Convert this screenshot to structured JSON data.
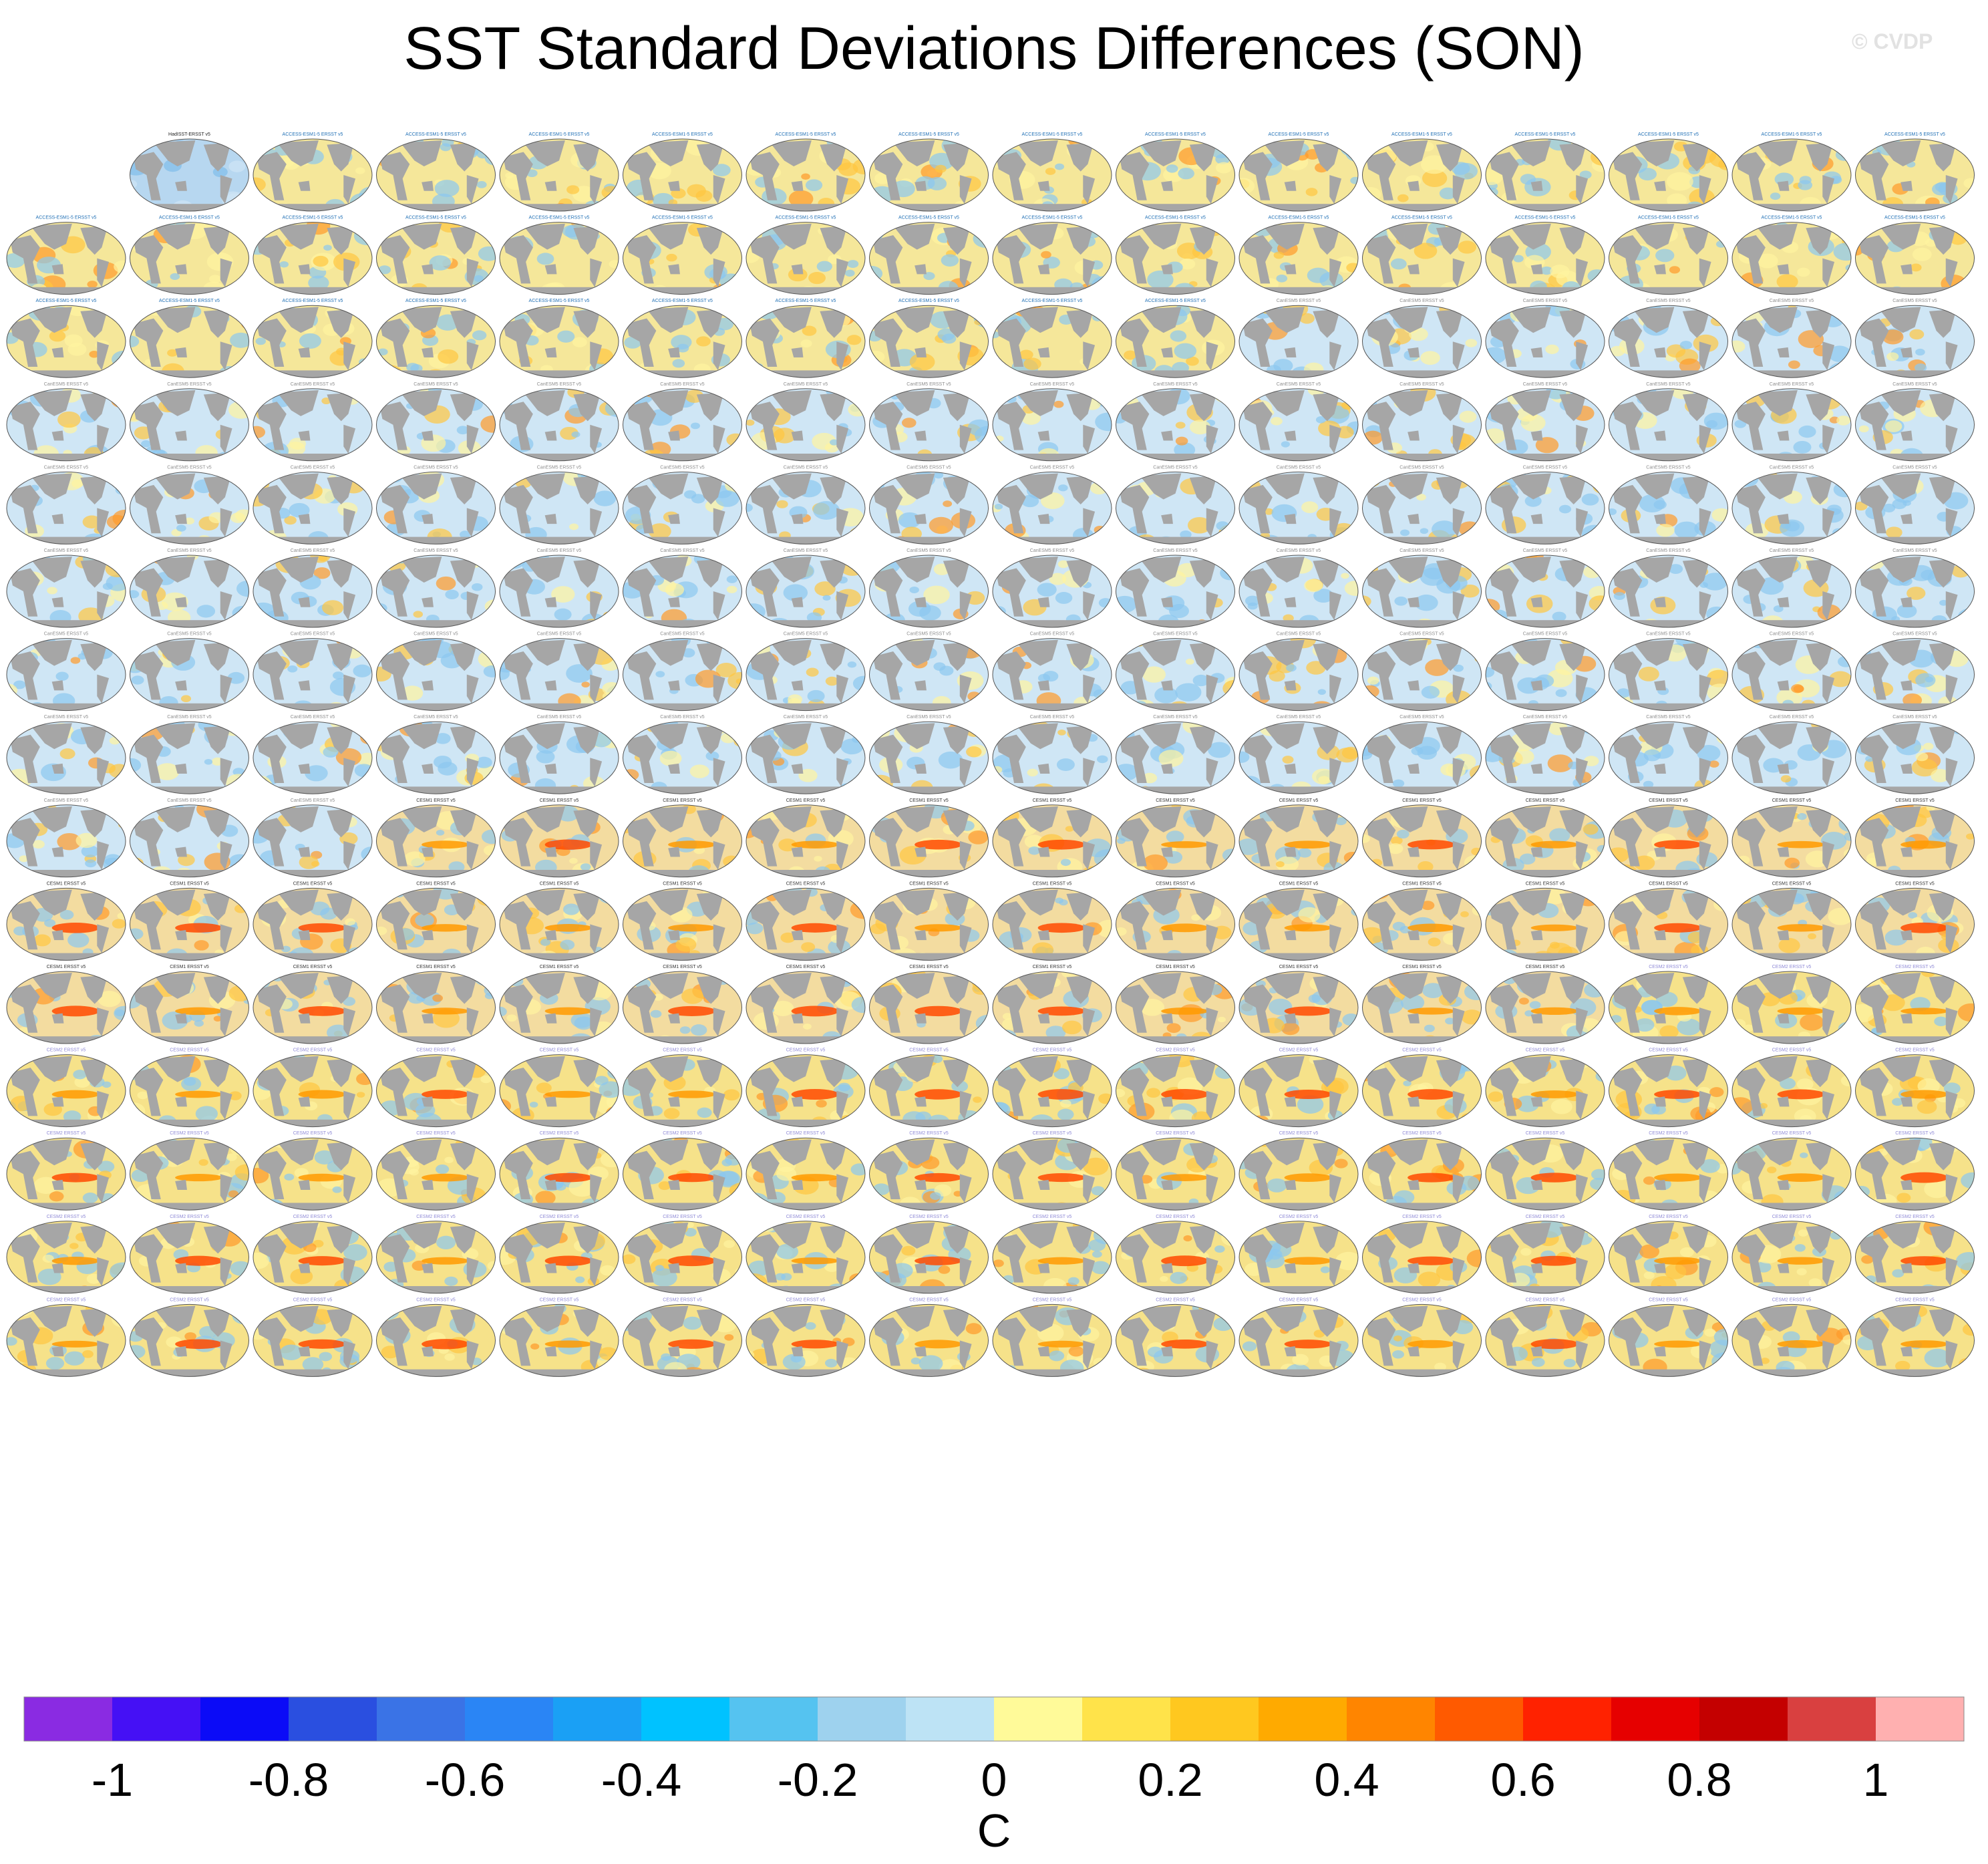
{
  "title": "SST Standard Deviations Differences (SON)",
  "watermark": "© CVDP",
  "chart_data": {
    "type": "heatmap",
    "title": "SST Standard Deviations Differences (SON)",
    "layout": "grid of global map panels, 16 columns x 15 rows",
    "first_panel_label": "HadISST-ERSST v5",
    "panel_groups": [
      {
        "model": "ACCESS-ESM1-5",
        "label_color": "#1f6fb5"
      },
      {
        "model": "CanESM5",
        "label_color": "#8e8e8e"
      },
      {
        "model": "CESM1",
        "label_color": "#333333"
      },
      {
        "model": "CESM2",
        "label_color": "#8f8ad6"
      }
    ],
    "colorbar": {
      "label": "C",
      "range": [
        -1,
        1
      ],
      "ticks": [
        "-1",
        "-0.8",
        "-0.6",
        "-0.4",
        "-0.2",
        "0",
        "0.2",
        "0.4",
        "0.6",
        "0.8",
        "1"
      ],
      "colors": [
        "#8a2be2",
        "#4510f5",
        "#0b0bf7",
        "#2a4fe0",
        "#3a73e6",
        "#2a85f5",
        "#1aa0f5",
        "#00c2ff",
        "#55c3f0",
        "#9ed2ee",
        "#bde3f5",
        "#fffa99",
        "#ffe34a",
        "#ffc81f",
        "#ffaa00",
        "#ff8500",
        "#ff5a00",
        "#ff2200",
        "#e60000",
        "#c40000",
        "#d94040",
        "#ffb0b0"
      ]
    }
  }
}
